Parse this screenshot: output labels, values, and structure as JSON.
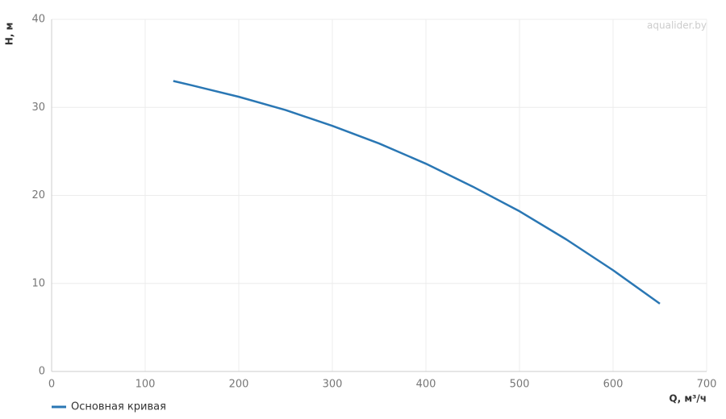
{
  "chart_data": {
    "type": "line",
    "x_label": "Q, м³/ч",
    "y_label": "H, м",
    "watermark": "aqualider.by",
    "x": [
      130,
      150,
      200,
      250,
      300,
      350,
      400,
      450,
      500,
      550,
      600,
      650
    ],
    "series": [
      {
        "name": "Основная кривая",
        "color": "#2a77b4",
        "values": [
          33.0,
          32.5,
          31.2,
          29.7,
          27.9,
          25.9,
          23.6,
          21.0,
          18.2,
          15.0,
          11.5,
          7.7
        ]
      }
    ],
    "xlim": [
      0,
      700
    ],
    "xticks": [
      0,
      100,
      200,
      300,
      400,
      500,
      600,
      700
    ],
    "ylim": [
      0,
      40
    ],
    "yticks": [
      0,
      10,
      20,
      30,
      40
    ],
    "grid": true
  }
}
